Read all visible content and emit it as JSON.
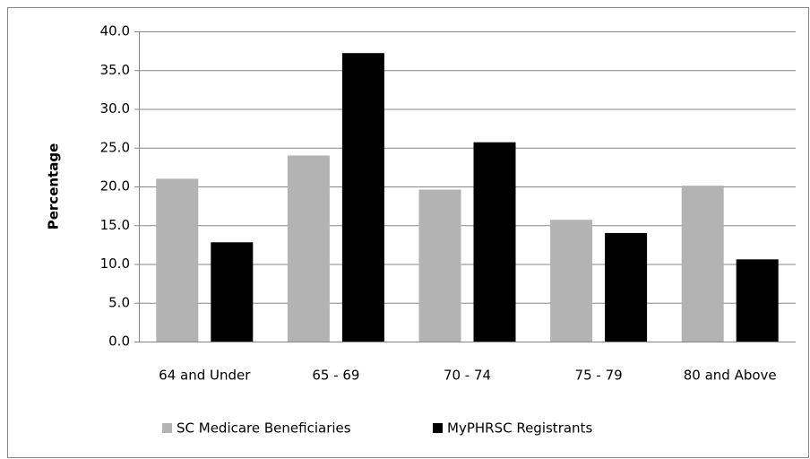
{
  "chart_data": {
    "type": "bar",
    "y_label": "Percentage",
    "categories": [
      "64 and Under",
      "65 - 69",
      "70 - 74",
      "75 - 79",
      "80 and Above"
    ],
    "series": [
      {
        "name": "SC Medicare Beneficiaries",
        "color": "#b3b3b3",
        "values": [
          21.0,
          24.0,
          19.6,
          15.7,
          20.1
        ]
      },
      {
        "name": "MyPHRSC Registrants",
        "color": "#000000",
        "values": [
          12.8,
          37.2,
          25.7,
          14.0,
          10.6
        ]
      }
    ],
    "ylim": [
      0,
      40
    ],
    "yticks": [
      {
        "value": 0,
        "label": "0.0"
      },
      {
        "value": 5,
        "label": "5.0"
      },
      {
        "value": 10,
        "label": "10.0"
      },
      {
        "value": 15,
        "label": "15.0"
      },
      {
        "value": 20,
        "label": "20.0"
      },
      {
        "value": 25,
        "label": "25.0"
      },
      {
        "value": 30,
        "label": "30.0"
      },
      {
        "value": 35,
        "label": "35.0"
      },
      {
        "value": 40,
        "label": "40.0"
      }
    ],
    "grid": true,
    "legend": "bottom"
  }
}
